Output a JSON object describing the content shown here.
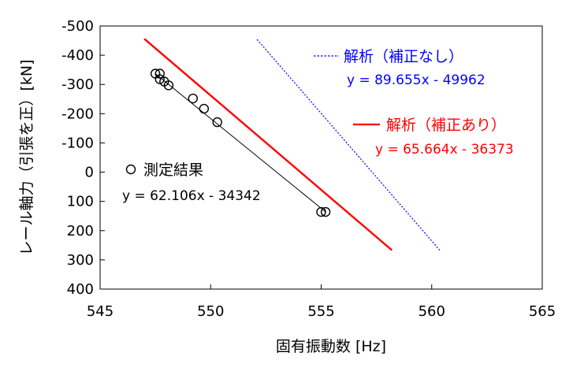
{
  "chart_data": {
    "type": "scatter",
    "xlabel": "固有振動数 [Hz]",
    "ylabel": "レール軸力（引張を正）[kN]",
    "xlim": [
      545,
      565
    ],
    "ylim": [
      -500,
      400
    ],
    "y_inverted": true,
    "x_ticks": [
      545,
      550,
      555,
      560,
      565
    ],
    "y_ticks": [
      -500,
      -400,
      -300,
      -200,
      -100,
      0,
      100,
      200,
      300,
      400
    ],
    "y_tick_labels": [
      "-500",
      "-400",
      "-300",
      "-200",
      "-100",
      "0",
      "100",
      "200",
      "300",
      "400"
    ],
    "grid": false,
    "series": [
      {
        "name": "測定結果",
        "kind": "markers",
        "marker": "circle-open",
        "color": "#000000",
        "points": [
          {
            "x": 547.5,
            "y": -337
          },
          {
            "x": 547.7,
            "y": -337
          },
          {
            "x": 547.7,
            "y": -318
          },
          {
            "x": 547.9,
            "y": -310
          },
          {
            "x": 548.1,
            "y": -297
          },
          {
            "x": 549.2,
            "y": -252
          },
          {
            "x": 549.7,
            "y": -217
          },
          {
            "x": 550.3,
            "y": -171
          },
          {
            "x": 555.0,
            "y": 136
          },
          {
            "x": 555.2,
            "y": 136
          }
        ],
        "fit": {
          "x": [
            547.5,
            555.2
          ],
          "y": [
            -337,
            136
          ],
          "color": "#000000"
        },
        "equation": "y = 62.106x - 34342"
      },
      {
        "name": "解析（補正あり）",
        "kind": "line",
        "style": "solid",
        "color": "#ff0000",
        "x": [
          547.0,
          558.2
        ],
        "y": [
          -456,
          267
        ],
        "equation": "y = 65.664x - 36373"
      },
      {
        "name": "解析（補正なし）",
        "kind": "line",
        "style": "dotted",
        "color": "#0000ff",
        "x": [
          552.1,
          560.4
        ],
        "y": [
          -454,
          270
        ],
        "equation": "y = 89.655x - 49962"
      }
    ],
    "legend": {
      "placement": "inside-top-right",
      "measured_label": "測定結果",
      "corrected_label": "解析（補正あり）",
      "uncorrected_label": "解析（補正なし）"
    }
  }
}
